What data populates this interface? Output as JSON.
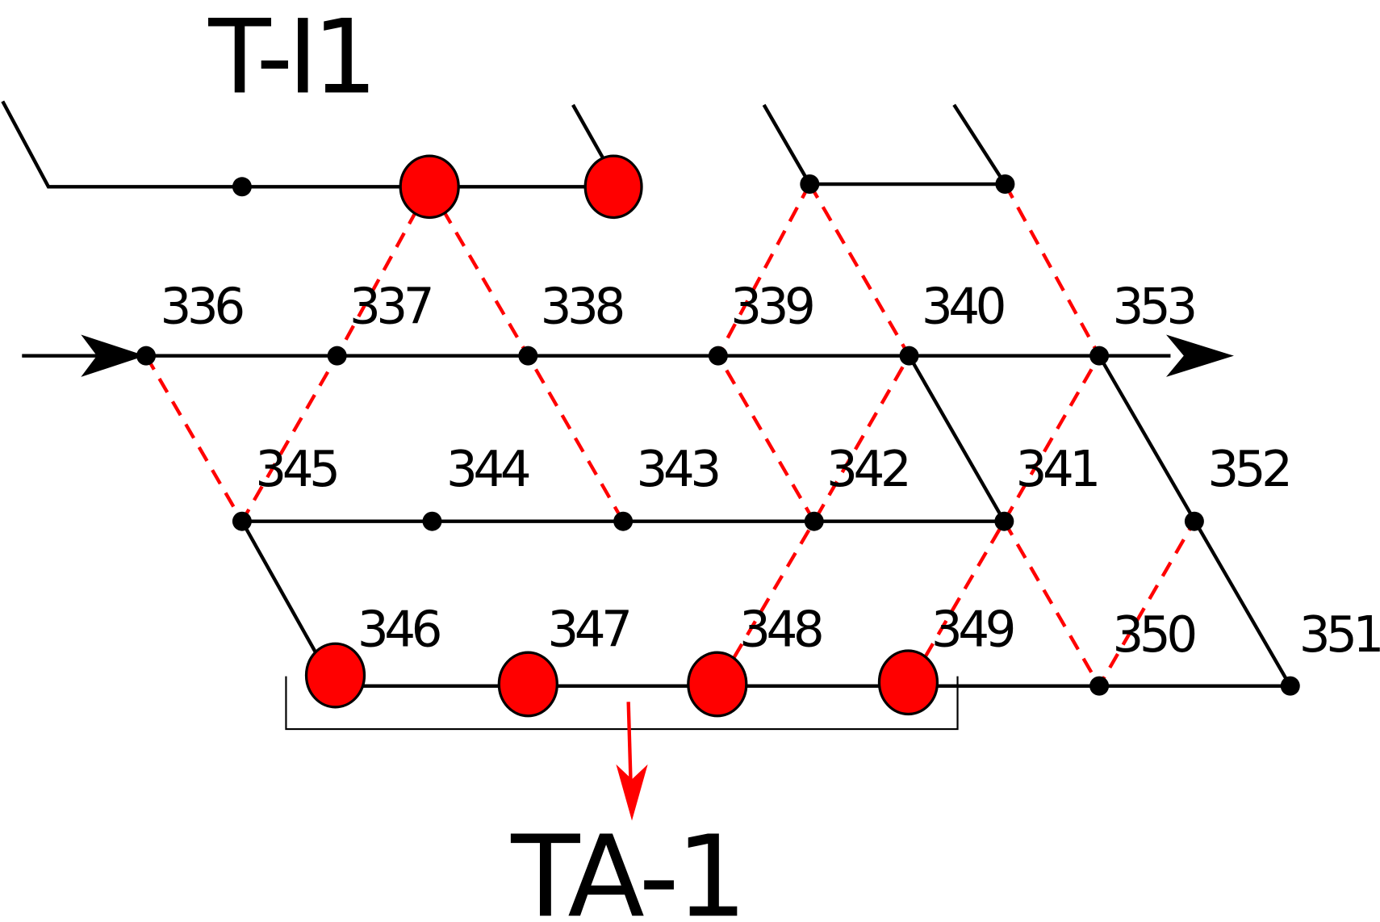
{
  "title": "T-I1",
  "output_label": "TA-1",
  "nodes": [
    {
      "label": "336"
    },
    {
      "label": "337"
    },
    {
      "label": "338"
    },
    {
      "label": "339"
    },
    {
      "label": "340"
    },
    {
      "label": "353"
    },
    {
      "label": "345"
    },
    {
      "label": "344"
    },
    {
      "label": "343"
    },
    {
      "label": "342"
    },
    {
      "label": "341"
    },
    {
      "label": "352"
    },
    {
      "label": "346"
    },
    {
      "label": "347"
    },
    {
      "label": "348"
    },
    {
      "label": "349"
    },
    {
      "label": "350"
    },
    {
      "label": "351"
    }
  ]
}
